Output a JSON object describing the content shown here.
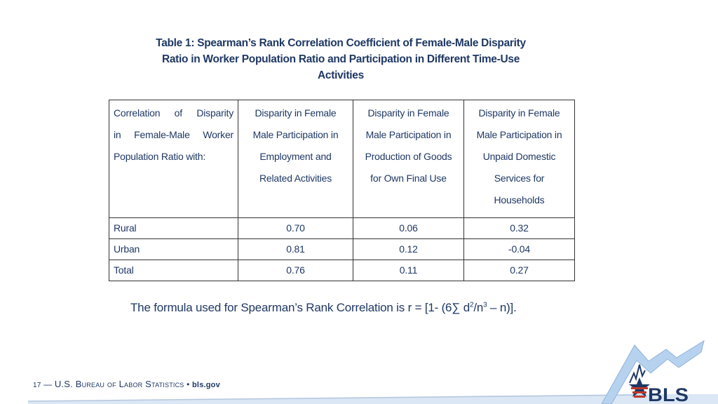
{
  "title_lines": [
    "Table 1: Spearman’s Rank Correlation Coefficient of Female-Male Disparity",
    "Ratio in Worker Population Ratio and Participation in Different Time-Use",
    "Activities"
  ],
  "table": {
    "headers": [
      [
        "Correlation of Disparity",
        "in Female-Male Worker",
        "Population Ratio with:"
      ],
      [
        "Disparity in Female",
        "Male Participation in",
        "Employment and",
        "Related Activities"
      ],
      [
        "Disparity in Female",
        "Male Participation in",
        "Production of Goods",
        "for Own Final Use"
      ],
      [
        "Disparity in Female",
        "Male Participation in",
        "Unpaid Domestic",
        "Services for",
        "Households"
      ]
    ],
    "rows": [
      [
        "Rural",
        "0.70",
        "0.06",
        "0.32"
      ],
      [
        "Urban",
        "0.81",
        "0.12",
        "-0.04"
      ],
      [
        "Total",
        "0.76",
        "0.11",
        "0.27"
      ]
    ]
  },
  "formula": {
    "prefix": "The formula used for Spearman’s Rank Correlation is r = [1- (6∑ d",
    "sup1": "2",
    "mid": "/n",
    "sup2": "3",
    "suffix": " – n)]."
  },
  "footer": {
    "page": "17",
    "dash": "—",
    "org": "U.S. Bureau of Labor Statistics",
    "bullet": "•",
    "site": "bls.gov"
  },
  "logo": {
    "text": "BLS",
    "colors": {
      "navy": "#1f3864",
      "red": "#c0392b",
      "sky": "#a9c8ea"
    }
  }
}
